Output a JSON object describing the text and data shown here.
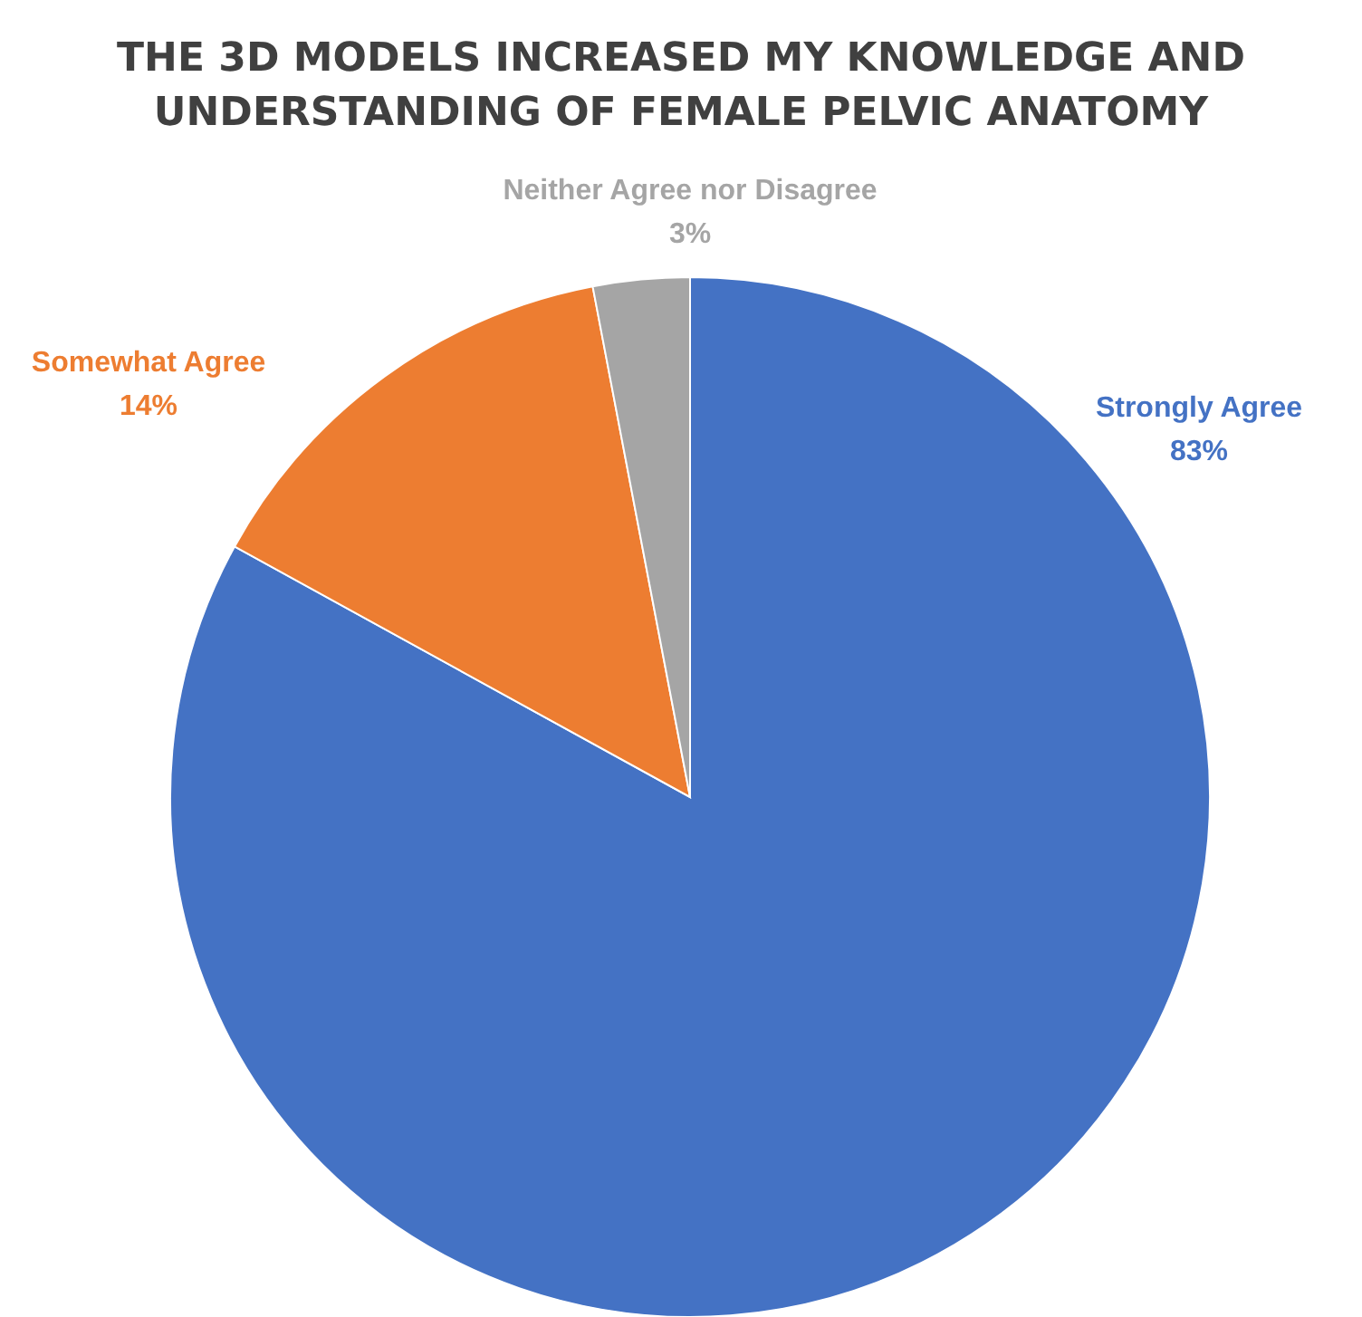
{
  "chart_data": {
    "type": "pie",
    "title": "THE 3D MODELS INCREASED MY KNOWLEDGE AND\nUNDERSTANDING OF FEMALE PELVIC ANATOMY",
    "categories": [
      "Strongly Agree",
      "Somewhat Agree",
      "Neither Agree nor Disagree"
    ],
    "values": [
      83,
      14,
      3
    ],
    "colors": [
      "#4472c4",
      "#ed7d31",
      "#a5a5a5"
    ],
    "value_labels": [
      "83%",
      "14%",
      "3%"
    ]
  }
}
